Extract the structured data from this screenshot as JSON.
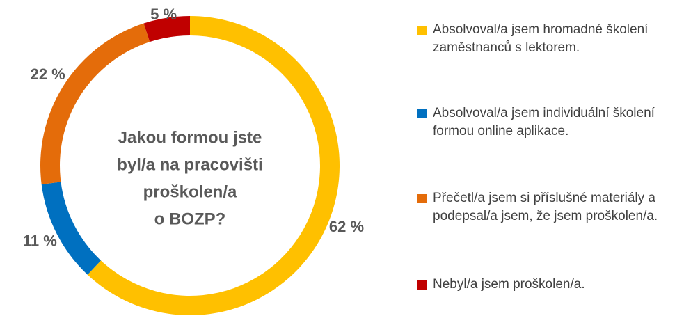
{
  "chart_data": {
    "type": "donut",
    "title": [
      "Jakou formou jste",
      "byl/a na pracovišti",
      "proškolen/a",
      "o BOZP?"
    ],
    "categories": [
      "Absolvoval/a jsem hromadné školení zaměstnanců s lektorem.",
      "Absolvoval/a jsem individuální školení formou online aplikace.",
      "Přečetl/a jsem si příslušné materiály a podepsal/a jsem, že jsem proškolen/a.",
      "Nebyl/a jsem proškolen/a."
    ],
    "values": [
      62,
      11,
      22,
      5
    ],
    "value_labels": [
      "62 %",
      "11 %",
      "22 %",
      "5 %"
    ],
    "colors": [
      "#FFC000",
      "#0070C0",
      "#E46C0A",
      "#C00000"
    ],
    "legend": "right"
  }
}
